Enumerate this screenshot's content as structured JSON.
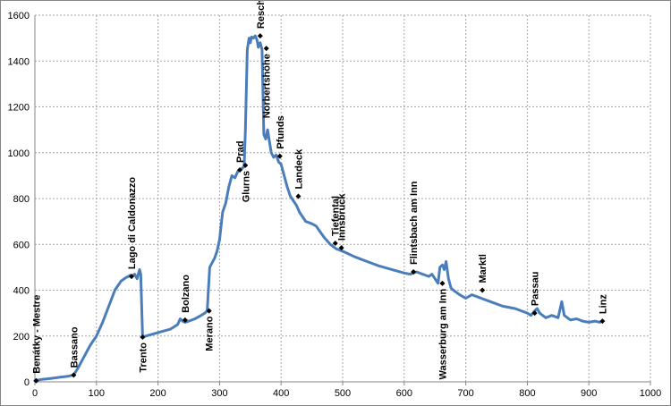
{
  "chart_data": {
    "type": "line",
    "title": "",
    "xlabel": "",
    "ylabel": "",
    "xlim": [
      0,
      1000
    ],
    "ylim": [
      0,
      1600
    ],
    "x_ticks": [
      0,
      100,
      200,
      300,
      400,
      500,
      600,
      700,
      800,
      900,
      1000
    ],
    "y_ticks": [
      0,
      200,
      400,
      600,
      800,
      1000,
      1200,
      1400,
      1600
    ],
    "grid": true,
    "legend": "none",
    "line_color": "#4a7ebb",
    "marker_color": "#000000",
    "series": [
      {
        "x": [
          0,
          10,
          25,
          40,
          55,
          63,
          70,
          80,
          90,
          100,
          110,
          120,
          130,
          140,
          148,
          152,
          155,
          158,
          162,
          166,
          170,
          172,
          175,
          180,
          200,
          220,
          232,
          236,
          240,
          244,
          250,
          260,
          270,
          276,
          280,
          284,
          288,
          292,
          296,
          300,
          305,
          310,
          315,
          320,
          325,
          330,
          336,
          340,
          342,
          345,
          348,
          350,
          352,
          355,
          358,
          361,
          363,
          366,
          369,
          372,
          375,
          378,
          381,
          384,
          388,
          392,
          396,
          400,
          405,
          410,
          415,
          420,
          425,
          430,
          440,
          450,
          457,
          462,
          470,
          480,
          490,
          500,
          520,
          540,
          560,
          580,
          600,
          610,
          620,
          630,
          640,
          645,
          650,
          655,
          658,
          662,
          665,
          668,
          672,
          676,
          680,
          690,
          700,
          710,
          720,
          725,
          740,
          760,
          780,
          800,
          806,
          812,
          816,
          820,
          830,
          840,
          850,
          856,
          860,
          870,
          880,
          890,
          900,
          910,
          918
        ],
        "y": [
          5,
          10,
          15,
          20,
          25,
          30,
          60,
          110,
          160,
          200,
          260,
          330,
          400,
          440,
          455,
          460,
          465,
          462,
          470,
          450,
          490,
          470,
          195,
          200,
          215,
          230,
          250,
          275,
          265,
          260,
          265,
          275,
          290,
          300,
          310,
          500,
          520,
          540,
          570,
          620,
          740,
          780,
          850,
          900,
          890,
          920,
          930,
          940,
          1100,
          1450,
          1500,
          1480,
          1505,
          1500,
          1510,
          1490,
          1460,
          1480,
          1450,
          1080,
          1060,
          1100,
          1050,
          1000,
          980,
          990,
          960,
          950,
          900,
          850,
          810,
          790,
          770,
          740,
          700,
          690,
          680,
          660,
          630,
          600,
          580,
          570,
          545,
          525,
          505,
          490,
          475,
          470,
          480,
          470,
          460,
          470,
          450,
          430,
          500,
          510,
          490,
          525,
          450,
          410,
          400,
          380,
          365,
          380,
          370,
          365,
          350,
          330,
          320,
          300,
          290,
          310,
          320,
          300,
          280,
          290,
          280,
          350,
          290,
          270,
          275,
          265,
          260,
          265,
          260
        ]
      }
    ],
    "annotations": [
      {
        "label": "Benátky - Mestre",
        "x": 2,
        "y": 5
      },
      {
        "label": "Bassano",
        "x": 63,
        "y": 30
      },
      {
        "label": "Lago di Caldonazzo",
        "x": 157,
        "y": 460
      },
      {
        "label": "Trento",
        "x": 175,
        "y": 195
      },
      {
        "label": "Bolzano",
        "x": 244,
        "y": 270
      },
      {
        "label": "Merano",
        "x": 283,
        "y": 310
      },
      {
        "label": "Prad",
        "x": 333,
        "y": 925
      },
      {
        "label": "Glurns",
        "x": 342,
        "y": 945
      },
      {
        "label": "Reschenpass",
        "x": 366,
        "y": 1510
      },
      {
        "label": "Norbertshöhe",
        "x": 376,
        "y": 1455
      },
      {
        "label": "Pfunds",
        "x": 398,
        "y": 985
      },
      {
        "label": "Landeck",
        "x": 428,
        "y": 810
      },
      {
        "label": "Tiefental",
        "x": 488,
        "y": 605
      },
      {
        "label": "Innsbruck",
        "x": 498,
        "y": 585
      },
      {
        "label": "Flintsbach am Inn",
        "x": 615,
        "y": 480
      },
      {
        "label": "Wasserburg am Inn",
        "x": 662,
        "y": 430
      },
      {
        "label": "Marktl",
        "x": 727,
        "y": 400
      },
      {
        "label": "Passau",
        "x": 812,
        "y": 300
      },
      {
        "label": "Linz",
        "x": 922,
        "y": 265
      }
    ]
  }
}
